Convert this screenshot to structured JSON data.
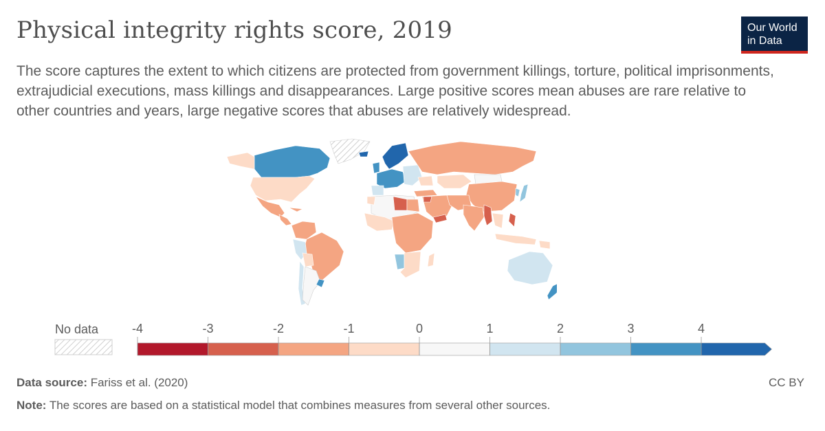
{
  "header": {
    "title": "Physical integrity rights score, 2019",
    "subtitle": "The score captures the extent to which citizens are protected from government killings, torture, political imprisonments, extrajudicial executions, mass killings and disappearances. Large positive scores mean abuses are rare relative to other countries and years, large negative scores that abuses are relatively widespread.",
    "logo_line1": "Our World",
    "logo_line2": "in Data"
  },
  "legend": {
    "no_data_label": "No data",
    "ticks": [
      "-4",
      "-3",
      "-2",
      "-1",
      "0",
      "1",
      "2",
      "3",
      "4"
    ],
    "bins": [
      {
        "from": -4,
        "to": -3,
        "color": "#b2182b"
      },
      {
        "from": -3,
        "to": -2,
        "color": "#d6604d"
      },
      {
        "from": -2,
        "to": -1,
        "color": "#f4a582"
      },
      {
        "from": -1,
        "to": 0,
        "color": "#fddbc7"
      },
      {
        "from": 0,
        "to": 1,
        "color": "#f7f7f7"
      },
      {
        "from": 1,
        "to": 2,
        "color": "#d1e5f0"
      },
      {
        "from": 2,
        "to": 3,
        "color": "#92c5de"
      },
      {
        "from": 3,
        "to": 4,
        "color": "#4393c3"
      },
      {
        "from": 4,
        "to": null,
        "color": "#2166ac"
      }
    ]
  },
  "map_regions": [
    {
      "name": "Canada",
      "color": "#4393c3"
    },
    {
      "name": "Greenland",
      "color": "no-data"
    },
    {
      "name": "United States",
      "color": "#fddbc7"
    },
    {
      "name": "Mexico",
      "color": "#f4a582"
    },
    {
      "name": "Central America",
      "color": "#f4a582"
    },
    {
      "name": "Colombia",
      "color": "#f4a582"
    },
    {
      "name": "Venezuela",
      "color": "#f4a582"
    },
    {
      "name": "Brazil",
      "color": "#f4a582"
    },
    {
      "name": "Peru",
      "color": "#d1e5f0"
    },
    {
      "name": "Bolivia",
      "color": "#fddbc7"
    },
    {
      "name": "Chile",
      "color": "#d1e5f0"
    },
    {
      "name": "Argentina",
      "color": "#f7f7f7"
    },
    {
      "name": "Uruguay",
      "color": "#4393c3"
    },
    {
      "name": "Scandinavia",
      "color": "#2166ac"
    },
    {
      "name": "Western Europe",
      "color": "#4393c3"
    },
    {
      "name": "Eastern Europe",
      "color": "#d1e5f0"
    },
    {
      "name": "Russia",
      "color": "#f4a582"
    },
    {
      "name": "Kazakhstan",
      "color": "#fddbc7"
    },
    {
      "name": "Mongolia",
      "color": "#f7f7f7"
    },
    {
      "name": "China",
      "color": "#f4a582"
    },
    {
      "name": "Japan",
      "color": "#92c5de"
    },
    {
      "name": "India",
      "color": "#f4a582"
    },
    {
      "name": "Myanmar",
      "color": "#d6604d"
    },
    {
      "name": "Middle East",
      "color": "#f4a582"
    },
    {
      "name": "Syria",
      "color": "#d6604d"
    },
    {
      "name": "Yemen",
      "color": "#d6604d"
    },
    {
      "name": "Libya",
      "color": "#d6604d"
    },
    {
      "name": "North Africa",
      "color": "#f7f7f7"
    },
    {
      "name": "Central Africa",
      "color": "#f4a582"
    },
    {
      "name": "Namibia",
      "color": "#92c5de"
    },
    {
      "name": "Southern Africa",
      "color": "#fddbc7"
    },
    {
      "name": "Madagascar",
      "color": "#fddbc7"
    },
    {
      "name": "Indonesia",
      "color": "#fddbc7"
    },
    {
      "name": "Papua New Guinea",
      "color": "#fddbc7"
    },
    {
      "name": "Australia",
      "color": "#d1e5f0"
    },
    {
      "name": "New Zealand",
      "color": "#4393c3"
    }
  ],
  "footer": {
    "source_label": "Data source:",
    "source_text": " Fariss et al. (2020)",
    "note_label": "Note:",
    "note_text": " The scores are based on a statistical model that combines measures from several other sources.",
    "license": "CC BY"
  }
}
